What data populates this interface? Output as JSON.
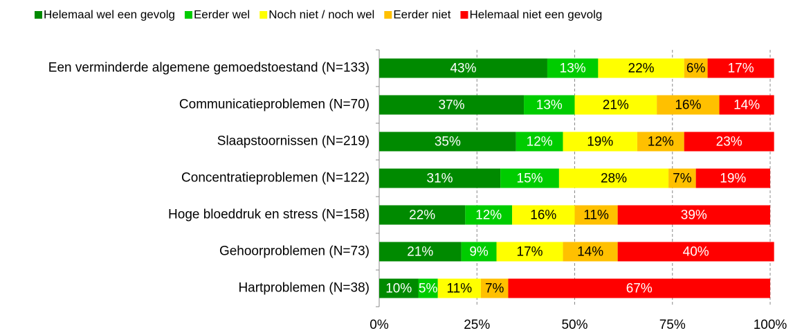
{
  "chart_data": {
    "type": "stacked-bar-horizontal",
    "categories": [
      "Een verminderde algemene gemoedstoestand (N=133)",
      "Communicatieproblemen (N=70)",
      "Slaapstoornissen (N=219)",
      "Concentratieproblemen (N=122)",
      "Hoge bloeddruk en stress (N=158)",
      "Gehoorproblemen (N=73)",
      "Hartproblemen (N=38)"
    ],
    "series": [
      {
        "name": "Helemaal wel een gevolg",
        "color": "#008a00",
        "label_color": "#ffffff",
        "values": [
          43,
          37,
          35,
          31,
          22,
          21,
          10
        ],
        "value_labels": [
          "43%",
          "37%",
          "35%",
          "31%",
          "22%",
          "21%",
          "10%"
        ]
      },
      {
        "name": "Eerder wel",
        "color": "#00cc00",
        "label_color": "#ffffff",
        "values": [
          13,
          13,
          12,
          15,
          12,
          9,
          5
        ],
        "value_labels": [
          "13%",
          "13%",
          "12%",
          "15%",
          "12%",
          "9%",
          "5%"
        ]
      },
      {
        "name": "Noch niet / noch wel",
        "color": "#ffff00",
        "label_color": "#000000",
        "values": [
          22,
          21,
          19,
          28,
          16,
          17,
          11
        ],
        "value_labels": [
          "22%",
          "21%",
          "19%",
          "28%",
          "16%",
          "17%",
          "11%"
        ]
      },
      {
        "name": "Eerder niet",
        "color": "#ffc000",
        "label_color": "#000000",
        "values": [
          6,
          16,
          12,
          7,
          11,
          14,
          7
        ],
        "value_labels": [
          "6%",
          "16%",
          "12%",
          "7%",
          "11%",
          "14%",
          "7%"
        ]
      },
      {
        "name": "Helemaal niet een gevolg",
        "color": "#ff0000",
        "label_color": "#ffffff",
        "values": [
          17,
          14,
          23,
          19,
          39,
          40,
          67
        ],
        "value_labels": [
          "17%",
          "14%",
          "23%",
          "19%",
          "39%",
          "40%",
          "67%"
        ]
      }
    ],
    "xlim": [
      0,
      100
    ],
    "xticks": [
      {
        "value": 0,
        "label": "0%"
      },
      {
        "value": 25,
        "label": "25%"
      },
      {
        "value": 50,
        "label": "50%"
      },
      {
        "value": 75,
        "label": "75%"
      },
      {
        "value": 100,
        "label": "100%"
      }
    ],
    "grid": true,
    "legend": "top"
  }
}
